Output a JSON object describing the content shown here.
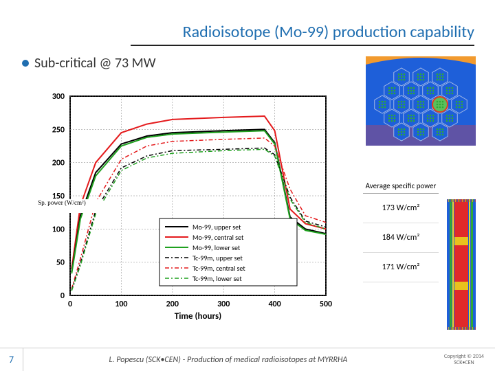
{
  "title": "Radioisotope (Mo-99) production capability",
  "bullet": "Sub-critical @ 73 MW",
  "chart": {
    "type": "line",
    "xlim": [
      0,
      500
    ],
    "ylim": [
      0,
      300
    ],
    "xtick_step": 100,
    "ytick_step": 50,
    "xticks": [
      0,
      100,
      200,
      300,
      400,
      500
    ],
    "yticks": [
      0,
      50,
      100,
      150,
      200,
      250,
      300
    ],
    "xlabel": "Time (hours)",
    "ylabel_overlay": "Sp. power (W/cm²)",
    "background_color": "#ffffff",
    "grid_color": "#808080",
    "grid_dash": "2,2",
    "axis_color": "#000000",
    "tick_fontsize": 12,
    "label_fontsize": 13,
    "legend": {
      "position": "inside-bottom-right-ish",
      "box_border": "#000000",
      "fontsize": 10,
      "items": [
        {
          "label": "Mo-99, upper set",
          "color": "#000000",
          "style": "solid",
          "width": 2
        },
        {
          "label": "Mo-99, central set",
          "color": "#e41a1c",
          "style": "solid",
          "width": 2
        },
        {
          "label": "Mo-99, lower set",
          "color": "#1fa11f",
          "style": "solid",
          "width": 2
        },
        {
          "label": "Tc-99m, upper set",
          "color": "#000000",
          "style": "dashdot",
          "width": 1.5
        },
        {
          "label": "Tc-99m, central set",
          "color": "#e41a1c",
          "style": "dashdot",
          "width": 1.5
        },
        {
          "label": "Tc-99m, lower set",
          "color": "#1fa11f",
          "style": "dashdot",
          "width": 1.5
        }
      ]
    },
    "series": [
      {
        "name": "Mo-99, central set",
        "color": "#e41a1c",
        "style": "solid",
        "width": 2,
        "x": [
          3,
          20,
          50,
          100,
          150,
          200,
          300,
          380,
          400,
          430,
          460,
          500
        ],
        "y": [
          40,
          135,
          200,
          245,
          258,
          265,
          268,
          270,
          248,
          130,
          108,
          100
        ]
      },
      {
        "name": "Mo-99, upper set",
        "color": "#000000",
        "style": "solid",
        "width": 2,
        "x": [
          3,
          20,
          50,
          100,
          150,
          200,
          300,
          380,
          400,
          430,
          460,
          500
        ],
        "y": [
          35,
          120,
          185,
          228,
          240,
          245,
          248,
          250,
          230,
          118,
          100,
          93
        ]
      },
      {
        "name": "Mo-99, lower set",
        "color": "#1fa11f",
        "style": "solid",
        "width": 2,
        "x": [
          3,
          20,
          50,
          100,
          150,
          200,
          300,
          380,
          400,
          430,
          460,
          500
        ],
        "y": [
          33,
          115,
          180,
          225,
          238,
          243,
          246,
          248,
          228,
          115,
          98,
          92
        ]
      },
      {
        "name": "Tc-99m, central set",
        "color": "#e41a1c",
        "style": "dashdot",
        "width": 1.5,
        "x": [
          3,
          20,
          50,
          100,
          150,
          200,
          300,
          380,
          400,
          430,
          460,
          500
        ],
        "y": [
          10,
          55,
          140,
          205,
          225,
          232,
          235,
          237,
          225,
          160,
          120,
          110
        ]
      },
      {
        "name": "Tc-99m, upper set",
        "color": "#000000",
        "style": "dashdot",
        "width": 1.5,
        "x": [
          3,
          20,
          50,
          100,
          150,
          200,
          300,
          380,
          400,
          430,
          460,
          500
        ],
        "y": [
          8,
          48,
          128,
          192,
          210,
          218,
          220,
          222,
          212,
          148,
          112,
          103
        ]
      },
      {
        "name": "Tc-99m, lower set",
        "color": "#1fa11f",
        "style": "dashdot",
        "width": 1.5,
        "x": [
          3,
          20,
          50,
          100,
          150,
          200,
          300,
          380,
          400,
          430,
          460,
          500
        ],
        "y": [
          7,
          45,
          123,
          188,
          207,
          214,
          218,
          220,
          210,
          145,
          110,
          100
        ]
      }
    ]
  },
  "hex_diagram": {
    "type": "hex-core-schematic",
    "bg_top_arc": "#f29a2e",
    "bg_bottom": "#7a4e8e",
    "water": "#1e5fd9",
    "hex_border": "#a2b8e6",
    "fuel_pin": "#2fa836",
    "target_ring": "#e33a1e",
    "target_fill": "#5bbf5b",
    "grid_size": 5
  },
  "power_table": {
    "header": "Average specific power",
    "rows": [
      "173 W/cm²",
      "184 W/cm²",
      "171 W/cm²"
    ]
  },
  "fuel_strip": {
    "type": "vertical-fuel-slice",
    "colors": [
      "#1e5fd9",
      "#f2d51e",
      "#2fa836",
      "#e02a2a",
      "#e8c11e"
    ],
    "bg": "#1e5fd9"
  },
  "footer": {
    "page": "7",
    "text": "L. Popescu (SCK•CEN) - Production of medical radioisotopes at MYRRHA",
    "copyright_l1": "Copyright © 2014",
    "copyright_l2": "SCK•CEN"
  }
}
